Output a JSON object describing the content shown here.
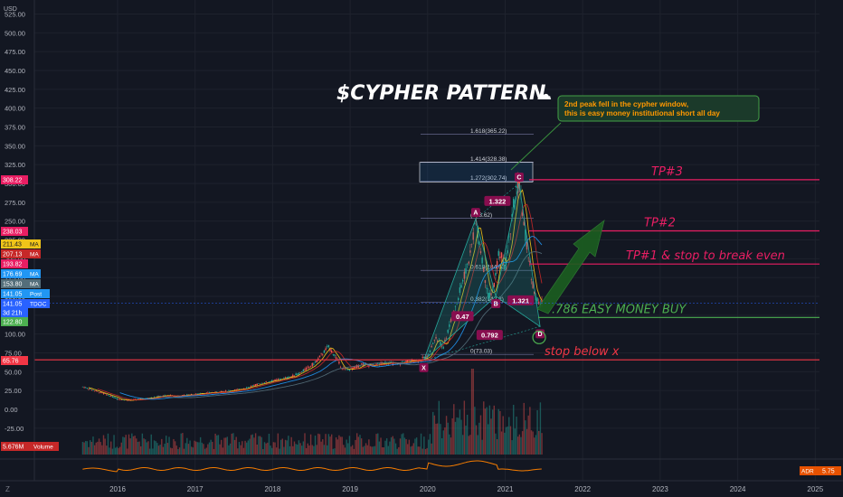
{
  "currency": "USD",
  "title": "$CYPHER PATTERN",
  "annotation": "2nd peak fell in the cypher window, this is easy money institutional short all day",
  "annotation_lines": [
    "2nd peak fell in the cypher window,",
    "this is easy money institutional short all day"
  ],
  "indicator": {
    "name": "ADR",
    "value": "5.75"
  },
  "volume_tag": {
    "value": "5.676M",
    "name": "Volume"
  },
  "tv_logo": "Z",
  "colors": {
    "bg": "#131722",
    "up": "#26a69a",
    "down": "#ef5350",
    "tp": "#e91e63",
    "buy": "#4caf50",
    "stop": "#f23645",
    "fib": "#9e9ed8"
  },
  "chart_data": {
    "type": "candlestick",
    "ylim": [
      -50,
      537.5
    ],
    "y_ticks": [
      525,
      500,
      475,
      450,
      425,
      400,
      375,
      350,
      325,
      300,
      275,
      250,
      225,
      200,
      175,
      150,
      125,
      100,
      75,
      50,
      25,
      0,
      -25
    ],
    "y_tick_labels": [
      "525.00",
      "500.00",
      "475.00",
      "450.00",
      "425.00",
      "400.00",
      "375.00",
      "350.00",
      "325.00",
      "300.00",
      "275.00",
      "250.00",
      "225.00",
      "200.00",
      "175.00",
      "150.00",
      "125.00",
      "100.00",
      "75.00",
      "50.00",
      "25.00",
      "0.00",
      "-25.00"
    ],
    "x_labels": [
      {
        "label": "2016",
        "t": 2016.0
      },
      {
        "label": "2017",
        "t": 2017.0
      },
      {
        "label": "2018",
        "t": 2018.0
      },
      {
        "label": "2019",
        "t": 2019.0
      },
      {
        "label": "2020",
        "t": 2020.0
      },
      {
        "label": "2021",
        "t": 2021.0
      },
      {
        "label": "2022",
        "t": 2022.0
      },
      {
        "label": "2023",
        "t": 2023.0
      },
      {
        "label": "2024",
        "t": 2024.0
      },
      {
        "label": "2025",
        "t": 2025.0
      }
    ],
    "price_path": [
      [
        2015.55,
        30
      ],
      [
        2015.7,
        25
      ],
      [
        2015.85,
        20
      ],
      [
        2016.0,
        14
      ],
      [
        2016.15,
        12
      ],
      [
        2016.35,
        14
      ],
      [
        2016.6,
        18
      ],
      [
        2016.8,
        18
      ],
      [
        2017.0,
        20
      ],
      [
        2017.2,
        22
      ],
      [
        2017.4,
        24
      ],
      [
        2017.6,
        27
      ],
      [
        2017.8,
        33
      ],
      [
        2018.0,
        38
      ],
      [
        2018.2,
        42
      ],
      [
        2018.35,
        48
      ],
      [
        2018.45,
        55
      ],
      [
        2018.55,
        62
      ],
      [
        2018.65,
        75
      ],
      [
        2018.72,
        83
      ],
      [
        2018.8,
        72
      ],
      [
        2018.88,
        57
      ],
      [
        2018.95,
        52
      ],
      [
        2019.05,
        55
      ],
      [
        2019.15,
        60
      ],
      [
        2019.3,
        58
      ],
      [
        2019.45,
        62
      ],
      [
        2019.6,
        60
      ],
      [
        2019.75,
        64
      ],
      [
        2019.9,
        66
      ],
      [
        2020.0,
        70
      ],
      [
        2020.1,
        96
      ],
      [
        2020.2,
        82
      ],
      [
        2020.28,
        110
      ],
      [
        2020.36,
        135
      ],
      [
        2020.45,
        170
      ],
      [
        2020.55,
        205
      ],
      [
        2020.62,
        253
      ],
      [
        2020.7,
        200
      ],
      [
        2020.78,
        150
      ],
      [
        2020.85,
        160
      ],
      [
        2020.92,
        210
      ],
      [
        2021.0,
        190
      ],
      [
        2021.05,
        225
      ],
      [
        2021.12,
        280
      ],
      [
        2021.18,
        300
      ],
      [
        2021.25,
        240
      ],
      [
        2021.32,
        190
      ],
      [
        2021.38,
        150
      ],
      [
        2021.44,
        140
      ],
      [
        2021.48,
        141
      ]
    ],
    "pattern_points": [
      {
        "label": "X",
        "t": 2019.95,
        "v": 65
      },
      {
        "label": "A",
        "t": 2020.62,
        "v": 253
      },
      {
        "label": "B",
        "t": 2020.88,
        "v": 150
      },
      {
        "label": "C",
        "t": 2021.18,
        "v": 300
      },
      {
        "label": "D",
        "t": 2021.45,
        "v": 110
      }
    ],
    "ratios": [
      {
        "label": "0.47",
        "t": 2020.45,
        "v": 122
      },
      {
        "label": "1.322",
        "t": 2020.9,
        "v": 275
      },
      {
        "label": "0.792",
        "t": 2020.8,
        "v": 97
      },
      {
        "label": "1.321",
        "t": 2021.2,
        "v": 143
      }
    ],
    "fib_levels": [
      {
        "label": "1.618(365.22)",
        "v": 365.22
      },
      {
        "label": "1.414(328.38)",
        "v": 328.38
      },
      {
        "label": "1.272(302.74)",
        "v": 302.74
      },
      {
        "label": "(253.62)",
        "v": 253.62
      },
      {
        "label": "0.618(184.63)",
        "v": 184.63
      },
      {
        "label": "0.382(142.2)",
        "v": 142.2
      },
      {
        "label": "0(73.03)",
        "v": 73.03
      }
    ],
    "targets": [
      {
        "label": "TP#3",
        "v": 305
      },
      {
        "label": "TP#2",
        "v": 237
      },
      {
        "label": "TP#1 & stop to break even",
        "v": 193
      },
      {
        "label": ".786 EASY MONEY BUY",
        "v": 122
      },
      {
        "label": "stop below x",
        "v": 65.76
      }
    ],
    "price_tags": [
      {
        "value": "308.22",
        "label": "",
        "color": "#e91e63"
      },
      {
        "value": "238.03",
        "label": "",
        "color": "#e91e63"
      },
      {
        "value": "211.43",
        "label": "MA",
        "color": "#f0c419"
      },
      {
        "value": "207.13",
        "label": "MA",
        "color": "#c62828"
      },
      {
        "value": "193.82",
        "label": "",
        "color": "#e91e63"
      },
      {
        "value": "176.69",
        "label": "MA",
        "color": "#2196f3"
      },
      {
        "value": "153.80",
        "label": "MA",
        "color": "#546e7a"
      },
      {
        "value": "141.05",
        "label": "Post",
        "color": "#2196f3"
      },
      {
        "value": "141.05",
        "label": "TDOC",
        "color": "#2962ff"
      },
      {
        "value": "3d 21h",
        "label": "",
        "color": "#2962ff"
      },
      {
        "value": "122.80",
        "label": "",
        "color": "#4caf50"
      },
      {
        "value": "65.76",
        "label": "",
        "color": "#f23645"
      }
    ]
  }
}
